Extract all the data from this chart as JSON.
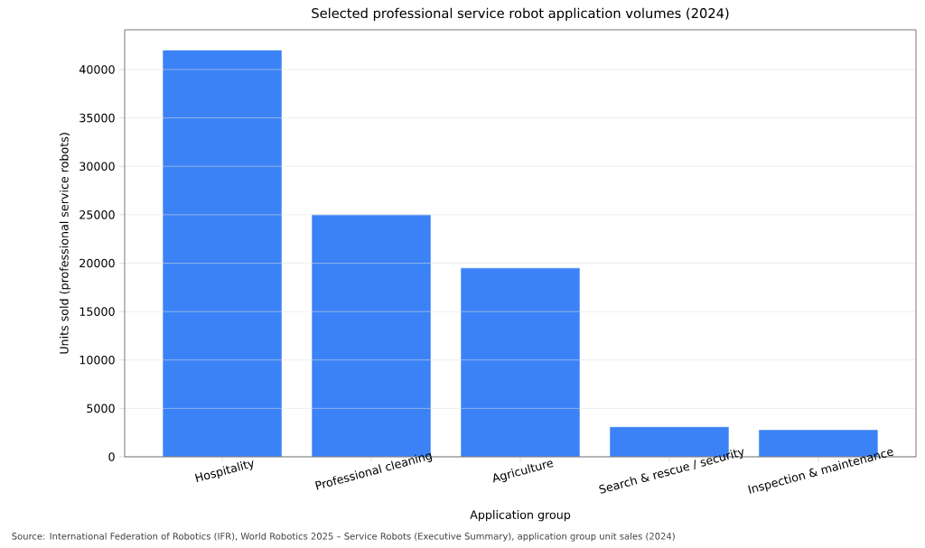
{
  "chart_data": {
    "type": "bar",
    "title": "Selected professional service robot application volumes (2024)",
    "xlabel": "Application group",
    "ylabel": "Units sold (professional service robots)",
    "categories": [
      "Hospitality",
      "Professional cleaning",
      "Agriculture",
      "Search & rescue / security",
      "Inspection & maintenance"
    ],
    "values": [
      42000,
      25000,
      19500,
      3100,
      2800
    ],
    "color": "#3b82f6",
    "ylim": [
      0,
      44100
    ],
    "yticks": [
      0,
      5000,
      10000,
      15000,
      20000,
      25000,
      30000,
      35000,
      40000
    ],
    "grid": "y",
    "annotations": [
      "Source: International Federation of Robotics (IFR), World Robotics 2025 – Service Robots (Executive Summary), application group unit sales (2024)"
    ]
  }
}
